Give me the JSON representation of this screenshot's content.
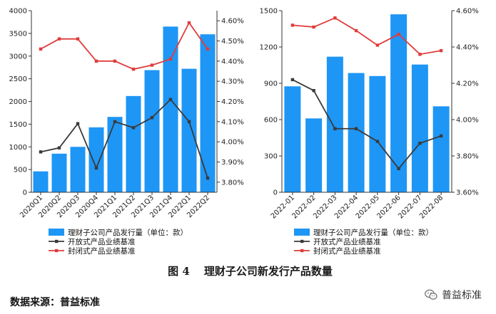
{
  "chart_data": [
    {
      "type": "bar+line",
      "categories": [
        "2020Q1",
        "2020Q2",
        "2020Q3",
        "2020Q4",
        "2021Q1",
        "2021Q2",
        "2021Q3",
        "2021Q4",
        "2022Q1",
        "2022Q2"
      ],
      "series": [
        {
          "name": "理财子公司产品发行量（单位：款）",
          "kind": "bar",
          "axis": "left",
          "color": "#1e96f5",
          "values": [
            460,
            850,
            1000,
            1430,
            1660,
            2120,
            2690,
            3650,
            2720,
            3480
          ]
        },
        {
          "name": "开放式产品业绩基准",
          "kind": "line",
          "axis": "right",
          "color": "#3a3a3a",
          "values": [
            3.95,
            3.97,
            4.09,
            3.87,
            4.1,
            4.07,
            4.12,
            4.21,
            4.1,
            3.82
          ]
        },
        {
          "name": "封闭式产品业绩基准",
          "kind": "line",
          "axis": "right",
          "color": "#e03c3c",
          "values": [
            4.46,
            4.51,
            4.51,
            4.4,
            4.4,
            4.36,
            4.38,
            4.41,
            4.59,
            4.46
          ]
        }
      ],
      "ylim_left": [
        0,
        4000
      ],
      "yticks_left": [
        "0",
        "500",
        "1000",
        "1500",
        "2000",
        "2500",
        "3000",
        "3500",
        "4000"
      ],
      "ylim_right": [
        3.75,
        4.65
      ],
      "yticks_right": [
        "3.80%",
        "3.90%",
        "4.00%",
        "4.10%",
        "4.20%",
        "4.30%",
        "4.40%",
        "4.50%",
        "4.60%"
      ],
      "legend": [
        "理财子公司产品发行量（单位：款）",
        "开放式产品业绩基准",
        "封闭式产品业绩基准"
      ],
      "legend_position": "bottom"
    },
    {
      "type": "bar+line",
      "categories": [
        "2022-01",
        "2022-02",
        "2022-03",
        "2022-04",
        "2022-05",
        "2022-06",
        "2022-07",
        "2022-08"
      ],
      "series": [
        {
          "name": "理财子公司产品发行量（单位：款）",
          "kind": "bar",
          "axis": "left",
          "color": "#1e96f5",
          "values": [
            875,
            610,
            1120,
            985,
            960,
            1470,
            1055,
            710
          ]
        },
        {
          "name": "开放式产品业绩基准",
          "kind": "line",
          "axis": "right",
          "color": "#3a3a3a",
          "values": [
            4.22,
            4.16,
            3.95,
            3.95,
            3.88,
            3.73,
            3.87,
            3.91
          ]
        },
        {
          "name": "封闭式产品业绩基准",
          "kind": "line",
          "axis": "right",
          "color": "#e03c3c",
          "values": [
            4.52,
            4.51,
            4.56,
            4.49,
            4.41,
            4.47,
            4.36,
            4.38
          ]
        }
      ],
      "ylim_left": [
        0,
        1500
      ],
      "yticks_left": [
        "0",
        "300",
        "600",
        "900",
        "1200",
        "1500"
      ],
      "ylim_right": [
        3.6,
        4.6
      ],
      "yticks_right": [
        "3.60%",
        "3.80%",
        "4.00%",
        "4.20%",
        "4.40%",
        "4.60%"
      ],
      "legend": [
        "理财子公司产品发行量（单位：款）",
        "开放式产品业绩基准",
        "封闭式产品业绩基准"
      ],
      "legend_position": "bottom"
    }
  ],
  "figure": {
    "label": "图 4",
    "title": "理财子公司新发行产品数量"
  },
  "source": "数据来源：普益标准",
  "watermark": {
    "icon": "wechat-icon",
    "text": "普益标准"
  }
}
